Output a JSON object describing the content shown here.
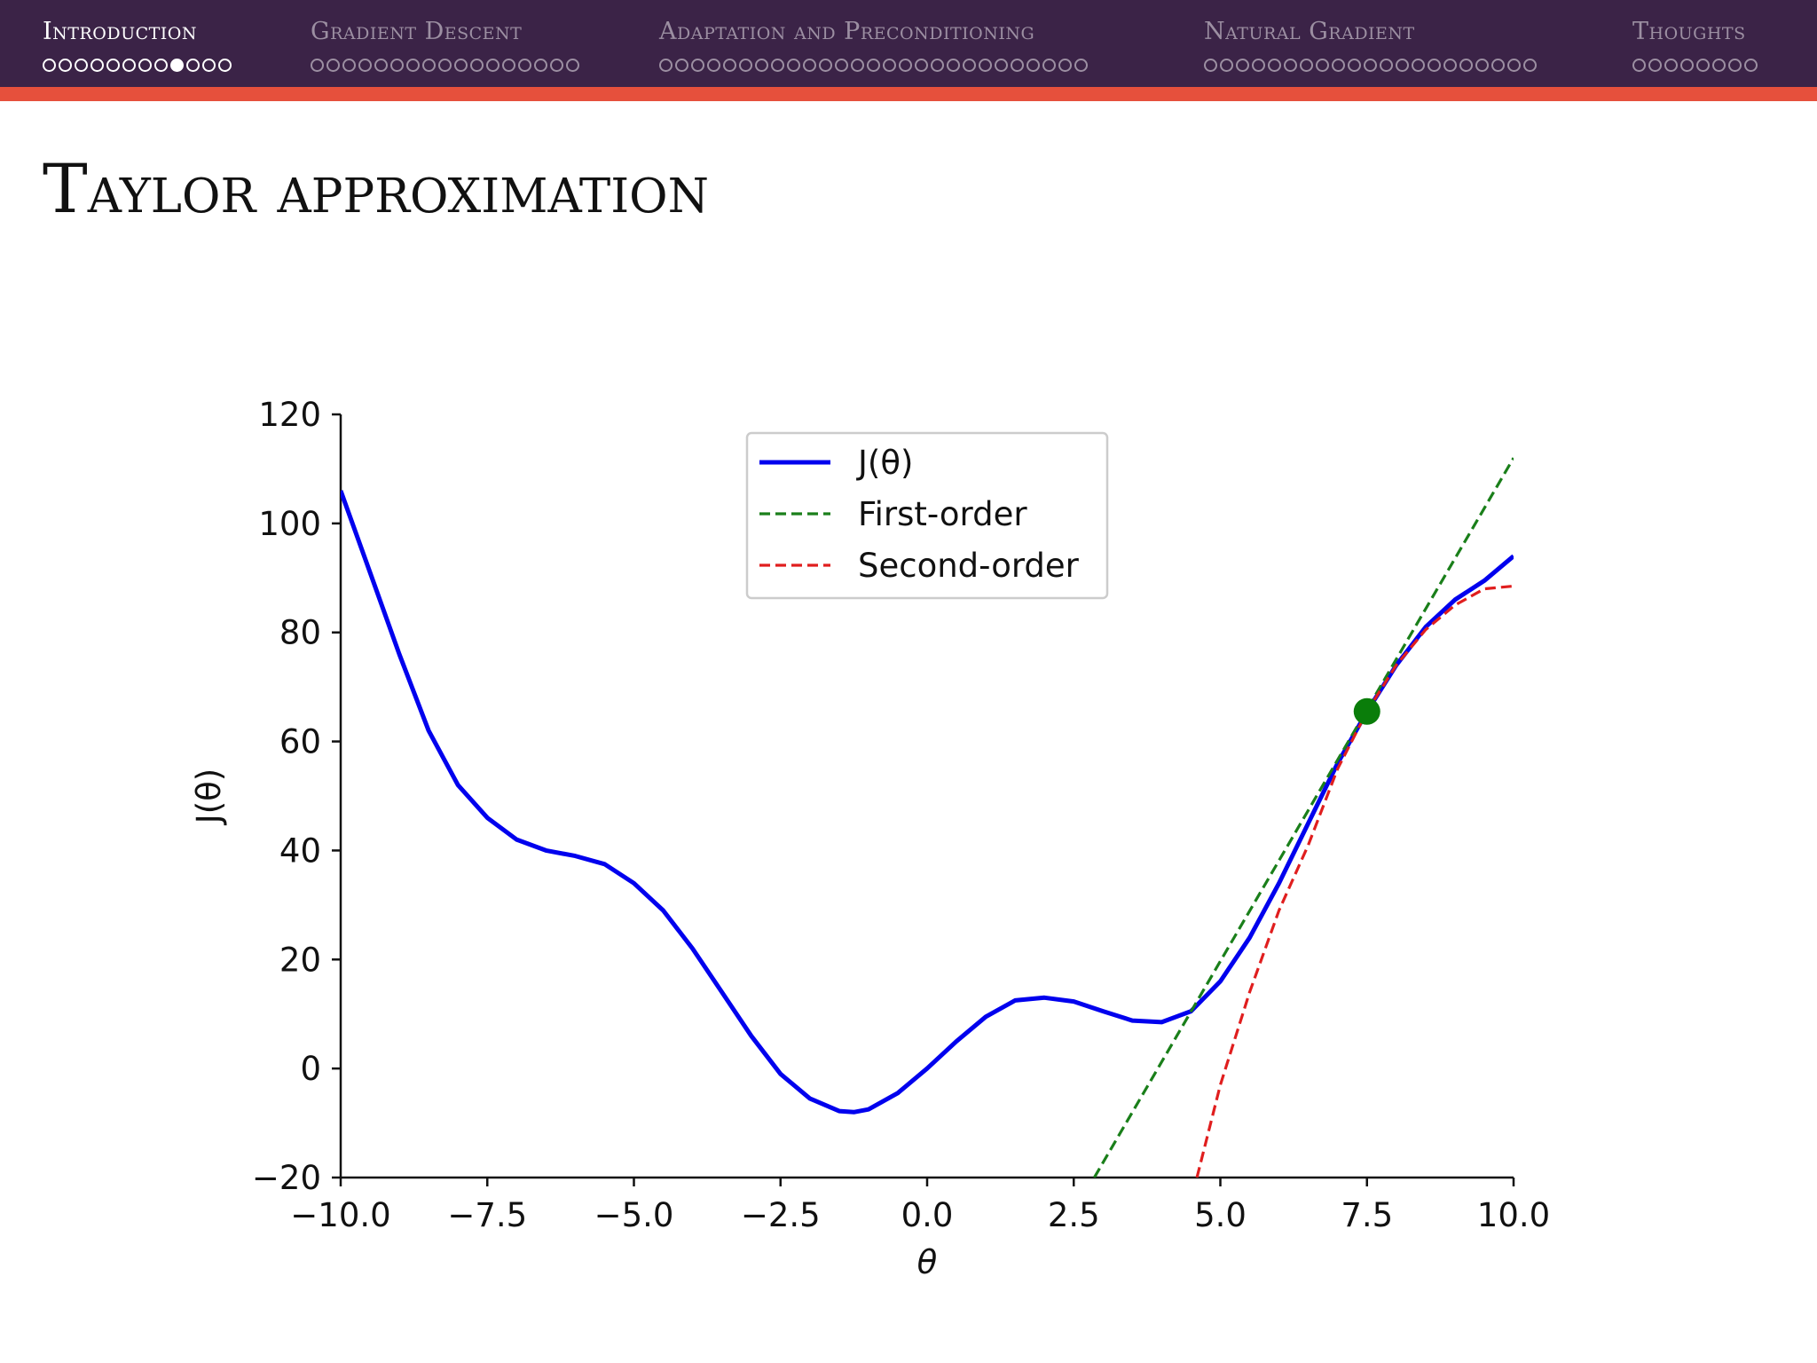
{
  "nav": {
    "sections": [
      {
        "title": "Introduction",
        "dots": 12,
        "active_index": 8,
        "current": true
      },
      {
        "title": "Gradient Descent",
        "dots": 17,
        "active_index": -1,
        "current": false
      },
      {
        "title": "Adaptation and Preconditioning",
        "dots": 27,
        "active_index": -1,
        "current": false
      },
      {
        "title": "Natural Gradient",
        "dots": 21,
        "active_index": -1,
        "current": false
      },
      {
        "title": "Thoughts",
        "dots": 8,
        "active_index": -1,
        "current": false
      }
    ],
    "colors": {
      "background": "#3b2347",
      "accent_bar": "#e6503c",
      "current_text": "#ffffff",
      "other_text": "#9c8fa2"
    }
  },
  "slide": {
    "title": "Taylor approximation"
  },
  "chart_data": {
    "type": "line",
    "xlabel": "θ",
    "ylabel": "J(θ)",
    "xlim": [
      -10,
      10
    ],
    "ylim": [
      -20,
      120
    ],
    "xticks": [
      -10,
      -7.5,
      -5,
      -2.5,
      0,
      2.5,
      5,
      7.5,
      10
    ],
    "xtick_labels": [
      "−10.0",
      "−7.5",
      "−5.0",
      "−2.5",
      "0.0",
      "2.5",
      "5.0",
      "7.5",
      "10.0"
    ],
    "yticks": [
      -20,
      0,
      20,
      40,
      60,
      80,
      100,
      120
    ],
    "ytick_labels": [
      "−20",
      "0",
      "20",
      "40",
      "60",
      "80",
      "100",
      "120"
    ],
    "legend_position": "top-center",
    "series": [
      {
        "name": "J(θ)",
        "color": "#0000ee",
        "style": "solid",
        "x": [
          -10,
          -9.5,
          -9,
          -8.5,
          -8,
          -7.5,
          -7,
          -6.5,
          -6,
          -5.5,
          -5,
          -4.5,
          -4,
          -3.5,
          -3,
          -2.5,
          -2,
          -1.5,
          -1.25,
          -1,
          -0.5,
          0,
          0.5,
          1,
          1.5,
          2,
          2.5,
          3,
          3.5,
          4,
          4.5,
          5,
          5.5,
          6,
          6.5,
          7,
          7.5,
          8,
          8.5,
          9,
          9.5,
          10
        ],
        "y": [
          106,
          91,
          76,
          62,
          52,
          46,
          42,
          40,
          39,
          37.5,
          34,
          29,
          22,
          14,
          6,
          -1,
          -5.5,
          -7.8,
          -8,
          -7.5,
          -4.5,
          0,
          5,
          9.5,
          12.5,
          13,
          12.3,
          10.5,
          8.8,
          8.5,
          10.5,
          16,
          24,
          34,
          45,
          56,
          65.5,
          74,
          81,
          86,
          89.5,
          94
        ]
      },
      {
        "name": "First-order",
        "color": "#1a7f1a",
        "style": "dashed",
        "x": [
          2.85,
          10
        ],
        "y": [
          -20,
          112
        ]
      },
      {
        "name": "Second-order",
        "color": "#e01e1e",
        "style": "dashed",
        "x": [
          4.6,
          5,
          5.5,
          6,
          6.5,
          7,
          7.5,
          8,
          8.5,
          9,
          9.5,
          10
        ],
        "y": [
          -20,
          -3,
          14,
          29,
          41,
          55,
          65.5,
          74,
          80.5,
          85,
          88,
          88.5
        ]
      }
    ],
    "marker": {
      "x": 7.5,
      "y": 65.5,
      "color": "#0a7d0a"
    }
  }
}
